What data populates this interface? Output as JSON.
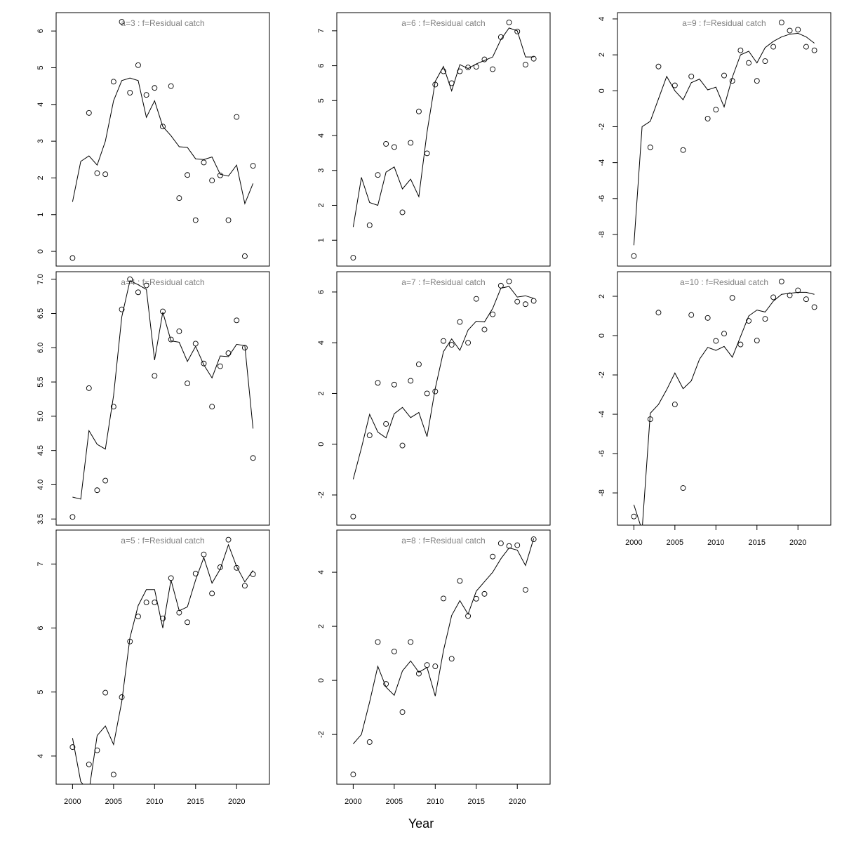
{
  "xlabel": "Year",
  "chart_data": [
    {
      "type": "scatter",
      "title": "a=3  :  f=Residual catch",
      "x": [
        2000,
        2001,
        2002,
        2003,
        2004,
        2005,
        2006,
        2007,
        2008,
        2009,
        2010,
        2011,
        2012,
        2013,
        2014,
        2015,
        2016,
        2017,
        2018,
        2019,
        2020,
        2021,
        2022
      ],
      "observed": [
        -0.18,
        null,
        3.77,
        2.13,
        2.1,
        4.62,
        6.25,
        4.32,
        5.07,
        4.26,
        4.45,
        3.4,
        4.5,
        1.45,
        2.08,
        0.85,
        2.42,
        1.93,
        2.07,
        0.85,
        3.66,
        -0.13,
        2.33
      ],
      "fitted": [
        1.35,
        2.45,
        2.6,
        2.35,
        3.0,
        4.1,
        4.65,
        4.72,
        4.65,
        3.65,
        4.1,
        3.4,
        3.15,
        2.85,
        2.83,
        2.52,
        2.5,
        2.57,
        2.1,
        2.05,
        2.35,
        1.3,
        1.85
      ],
      "xlim": [
        1998,
        2024
      ],
      "ylim": [
        -0.4,
        6.5
      ],
      "yticks": [
        0,
        1,
        2,
        3,
        4,
        5,
        6
      ]
    },
    {
      "type": "scatter",
      "title": "a=6  :  f=Residual catch",
      "x": [
        2000,
        2001,
        2002,
        2003,
        2004,
        2005,
        2006,
        2007,
        2008,
        2009,
        2010,
        2011,
        2012,
        2013,
        2014,
        2015,
        2016,
        2017,
        2018,
        2019,
        2020,
        2021,
        2022
      ],
      "observed": [
        0.5,
        null,
        1.43,
        2.87,
        3.76,
        3.67,
        1.8,
        3.79,
        4.69,
        3.49,
        5.46,
        5.84,
        5.5,
        5.84,
        5.95,
        5.97,
        6.18,
        5.9,
        6.82,
        7.24,
        6.98,
        6.03,
        6.2
      ],
      "fitted": [
        1.38,
        2.8,
        2.08,
        2.0,
        2.95,
        3.1,
        2.47,
        2.75,
        2.25,
        4.1,
        5.55,
        5.98,
        5.28,
        6.03,
        5.92,
        6.05,
        6.15,
        6.25,
        6.75,
        7.08,
        7.0,
        6.25,
        6.25
      ],
      "xlim": [
        1998,
        2024
      ],
      "ylim": [
        0.26,
        7.52
      ],
      "yticks": [
        1,
        2,
        3,
        4,
        5,
        6,
        7
      ]
    },
    {
      "type": "scatter",
      "title": "a=9  :  f=Residual catch",
      "x": [
        2000,
        2001,
        2002,
        2003,
        2004,
        2005,
        2006,
        2007,
        2008,
        2009,
        2010,
        2011,
        2012,
        2013,
        2014,
        2015,
        2016,
        2017,
        2018,
        2019,
        2020,
        2021,
        2022
      ],
      "observed": [
        -9.2,
        null,
        -3.15,
        1.35,
        null,
        0.3,
        -3.3,
        0.8,
        null,
        -1.55,
        -1.05,
        0.85,
        0.55,
        2.25,
        1.55,
        0.55,
        1.65,
        2.45,
        3.8,
        3.35,
        3.4,
        2.45,
        2.25
      ],
      "fitted": [
        -8.6,
        -2.0,
        -1.7,
        -0.45,
        0.8,
        0.0,
        -0.5,
        0.45,
        0.65,
        0.05,
        0.2,
        -0.9,
        0.75,
        2.0,
        2.2,
        1.55,
        2.4,
        2.75,
        3.0,
        3.15,
        3.2,
        3.0,
        2.65
      ],
      "xlim": [
        1998,
        2024
      ],
      "ylim": [
        -9.76,
        4.35
      ],
      "yticks": [
        -8,
        -6,
        -4,
        -2,
        0,
        2,
        4
      ]
    },
    {
      "type": "scatter",
      "title": "a=4  :  f=Residual catch",
      "x": [
        2000,
        2001,
        2002,
        2003,
        2004,
        2005,
        2006,
        2007,
        2008,
        2009,
        2010,
        2011,
        2012,
        2013,
        2014,
        2015,
        2016,
        2017,
        2018,
        2019,
        2020,
        2021,
        2022
      ],
      "observed": [
        3.53,
        null,
        5.41,
        3.92,
        4.06,
        5.14,
        6.56,
        7.0,
        6.81,
        6.91,
        5.59,
        6.53,
        6.12,
        6.24,
        5.48,
        6.06,
        5.77,
        5.14,
        5.73,
        5.92,
        6.4,
        6.0,
        4.39
      ],
      "fitted": [
        3.82,
        3.79,
        4.79,
        4.59,
        4.52,
        5.3,
        6.45,
        6.98,
        6.92,
        6.85,
        5.82,
        6.52,
        6.1,
        6.08,
        5.8,
        6.02,
        5.75,
        5.56,
        5.88,
        5.87,
        6.05,
        6.03,
        4.82
      ],
      "xlim": [
        1998,
        2024
      ],
      "ylim": [
        3.41,
        7.11
      ],
      "yticks": [
        3.5,
        {
          "value": 4,
          "label": "4.0"
        },
        4.5,
        {
          "value": 5,
          "label": "5.0"
        },
        5.5,
        {
          "value": 6,
          "label": "6.0"
        },
        6.5,
        {
          "value": 7,
          "label": "7.0"
        }
      ]
    },
    {
      "type": "scatter",
      "title": "a=7  :  f=Residual catch",
      "x": [
        2000,
        2001,
        2002,
        2003,
        2004,
        2005,
        2006,
        2007,
        2008,
        2009,
        2010,
        2011,
        2012,
        2013,
        2014,
        2015,
        2016,
        2017,
        2018,
        2019,
        2020,
        2021,
        2022
      ],
      "observed": [
        -2.85,
        null,
        0.35,
        2.42,
        0.8,
        2.35,
        -0.05,
        2.5,
        3.15,
        2.0,
        2.08,
        4.07,
        3.92,
        4.82,
        4.0,
        5.73,
        4.52,
        5.12,
        6.25,
        6.42,
        5.62,
        5.52,
        5.65
      ],
      "fitted": [
        -1.38,
        -0.15,
        1.18,
        0.48,
        0.25,
        1.2,
        1.45,
        1.05,
        1.25,
        0.3,
        2.2,
        3.65,
        4.15,
        3.7,
        4.5,
        4.85,
        4.82,
        5.35,
        6.15,
        6.22,
        5.8,
        5.85,
        5.75
      ],
      "xlim": [
        1998,
        2024
      ],
      "ylim": [
        -3.19,
        6.8
      ],
      "yticks": [
        -2,
        0,
        2,
        4,
        6
      ]
    },
    {
      "type": "scatter",
      "title": "a=10  :  f=Residual catch",
      "x": [
        2000,
        2001,
        2002,
        2003,
        2004,
        2005,
        2006,
        2007,
        2008,
        2009,
        2010,
        2011,
        2012,
        2013,
        2014,
        2015,
        2016,
        2017,
        2018,
        2019,
        2020,
        2021,
        2022
      ],
      "observed": [
        -9.2,
        null,
        -4.25,
        1.17,
        null,
        -3.5,
        -7.75,
        1.05,
        null,
        0.9,
        -0.27,
        0.1,
        1.92,
        -0.45,
        0.75,
        -0.25,
        0.85,
        1.95,
        2.75,
        2.05,
        2.3,
        1.85,
        1.45
      ],
      "fitted": [
        -8.6,
        -9.9,
        -3.95,
        -3.5,
        -2.75,
        -1.9,
        -2.7,
        -2.3,
        -1.2,
        -0.6,
        -0.75,
        -0.55,
        -1.1,
        -0.05,
        1.0,
        1.3,
        1.2,
        1.75,
        2.1,
        2.15,
        2.2,
        2.2,
        2.1
      ],
      "xlim": [
        1998,
        2024
      ],
      "ylim": [
        -9.64,
        3.25
      ],
      "yticks": [
        -8,
        -6,
        -4,
        -2,
        0,
        2
      ],
      "xticks": [
        2000,
        2005,
        2010,
        2015,
        2020
      ]
    },
    {
      "type": "scatter",
      "title": "a=5  :  f=Residual catch",
      "x": [
        2000,
        2001,
        2002,
        2003,
        2004,
        2005,
        2006,
        2007,
        2008,
        2009,
        2010,
        2011,
        2012,
        2013,
        2014,
        2015,
        2016,
        2017,
        2018,
        2019,
        2020,
        2021,
        2022
      ],
      "observed": [
        4.14,
        null,
        3.87,
        4.09,
        4.99,
        3.71,
        4.92,
        5.79,
        6.18,
        6.4,
        6.4,
        6.15,
        6.78,
        6.24,
        6.09,
        6.85,
        7.15,
        6.54,
        6.95,
        7.38,
        6.94,
        6.66,
        6.84
      ],
      "fitted": [
        4.28,
        3.6,
        3.45,
        4.32,
        4.47,
        4.18,
        4.85,
        5.85,
        6.35,
        6.6,
        6.6,
        6.0,
        6.75,
        6.27,
        6.33,
        6.75,
        7.1,
        6.7,
        6.92,
        7.3,
        6.96,
        6.72,
        6.9
      ],
      "xlim": [
        1998,
        2024
      ],
      "ylim": [
        3.56,
        7.53
      ],
      "yticks": [
        4,
        5,
        6,
        7
      ],
      "xticks": [
        2000,
        2005,
        2010,
        2015,
        2020
      ]
    },
    {
      "type": "scatter",
      "title": "a=8  :  f=Residual catch",
      "x": [
        2000,
        2001,
        2002,
        2003,
        2004,
        2005,
        2006,
        2007,
        2008,
        2009,
        2010,
        2011,
        2012,
        2013,
        2014,
        2015,
        2016,
        2017,
        2018,
        2019,
        2020,
        2021,
        2022
      ],
      "observed": [
        -3.48,
        null,
        -2.28,
        1.42,
        -0.13,
        1.07,
        -1.17,
        1.42,
        0.25,
        0.57,
        0.52,
        3.03,
        0.8,
        3.68,
        2.38,
        3.02,
        3.2,
        4.58,
        5.07,
        4.97,
        5.0,
        3.35,
        5.22
      ],
      "fitted": [
        -2.35,
        -2.0,
        -0.8,
        0.52,
        -0.25,
        -0.55,
        0.35,
        0.72,
        0.3,
        0.48,
        -0.58,
        1.1,
        2.4,
        2.95,
        2.45,
        3.3,
        3.65,
        4.0,
        4.5,
        4.9,
        4.82,
        4.25,
        5.25
      ],
      "xlim": [
        1998,
        2024
      ],
      "ylim": [
        -3.84,
        5.56
      ],
      "yticks": [
        -2,
        0,
        2,
        4
      ],
      "xticks": [
        2000,
        2005,
        2010,
        2015,
        2020
      ]
    }
  ]
}
